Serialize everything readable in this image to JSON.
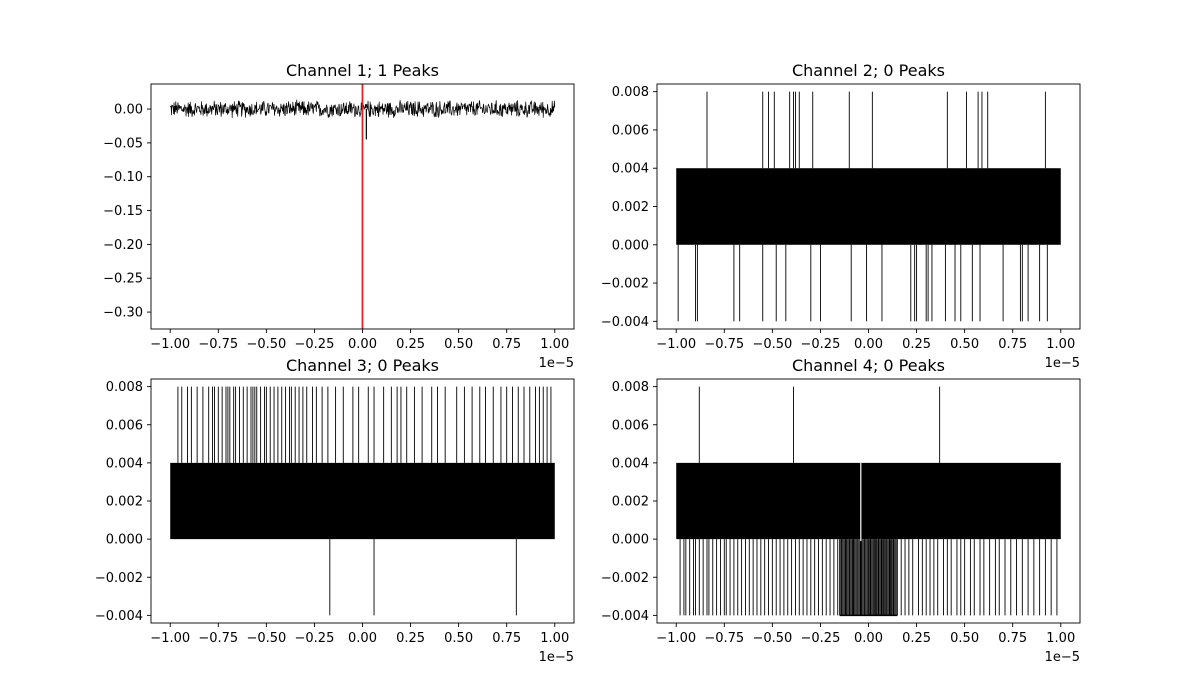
{
  "chart_data": [
    {
      "type": "line",
      "title": "Channel 1; 1 Peaks",
      "x_offset_label": "1e−5",
      "xlim": [
        -1.0,
        1.0
      ],
      "xlim_display": [
        -1.1,
        1.1
      ],
      "ylim": [
        -0.325,
        0.037
      ],
      "x_ticks": [
        -1.0,
        -0.75,
        -0.5,
        -0.25,
        0.0,
        0.25,
        0.5,
        0.75,
        1.0
      ],
      "x_tick_labels": [
        "−1.00",
        "−0.75",
        "−0.50",
        "−0.25",
        "0.00",
        "0.25",
        "0.50",
        "0.75",
        "1.00"
      ],
      "y_ticks": [
        0.0,
        -0.05,
        -0.1,
        -0.15,
        -0.2,
        -0.25,
        -0.3
      ],
      "y_tick_labels": [
        "0.00",
        "−0.05",
        "−0.10",
        "−0.15",
        "−0.20",
        "−0.25",
        "−0.30"
      ],
      "signal": {
        "kind": "noise",
        "baseline": 0.0,
        "amplitude": 0.012,
        "min_spike": -0.045,
        "min_spike_x": 0.02
      },
      "peak_markers": [
        0.0
      ],
      "peak_color": "#d62728",
      "line_color": "#000000"
    },
    {
      "type": "line",
      "title": "Channel 2; 0 Peaks",
      "x_offset_label": "1e−5",
      "xlim": [
        -1.0,
        1.0
      ],
      "xlim_display": [
        -1.1,
        1.1
      ],
      "ylim": [
        -0.0044,
        0.0084
      ],
      "x_ticks": [
        -1.0,
        -0.75,
        -0.5,
        -0.25,
        0.0,
        0.25,
        0.5,
        0.75,
        1.0
      ],
      "x_tick_labels": [
        "−1.00",
        "−0.75",
        "−0.50",
        "−0.25",
        "0.00",
        "0.25",
        "0.50",
        "0.75",
        "1.00"
      ],
      "y_ticks": [
        0.008,
        0.006,
        0.004,
        0.002,
        0.0,
        -0.002,
        -0.004
      ],
      "y_tick_labels": [
        "0.008",
        "0.006",
        "0.004",
        "0.002",
        "0.000",
        "−0.002",
        "−0.004"
      ],
      "signal": {
        "kind": "quantized",
        "low": 0.0,
        "high": 0.004,
        "up_level": 0.008,
        "down_level": -0.004
      },
      "up_spikes": [
        -0.84,
        -0.55,
        -0.52,
        -0.49,
        -0.41,
        -0.39,
        -0.38,
        -0.36,
        -0.29,
        -0.1,
        0.02,
        0.41,
        0.51,
        0.57,
        0.59,
        0.62,
        0.92
      ],
      "down_spikes": [
        -0.99,
        -0.9,
        -0.89,
        -0.7,
        -0.67,
        -0.55,
        -0.48,
        -0.43,
        -0.3,
        -0.25,
        -0.09,
        -0.01,
        0.07,
        0.22,
        0.24,
        0.25,
        0.3,
        0.31,
        0.33,
        0.4,
        0.45,
        0.48,
        0.54,
        0.58,
        0.7,
        0.79,
        0.8,
        0.83,
        0.89,
        0.93
      ],
      "line_color": "#000000"
    },
    {
      "type": "line",
      "title": "Channel 3; 0 Peaks",
      "x_offset_label": "1e−5",
      "xlim": [
        -1.0,
        1.0
      ],
      "xlim_display": [
        -1.1,
        1.1
      ],
      "ylim": [
        -0.0044,
        0.0084
      ],
      "x_ticks": [
        -1.0,
        -0.75,
        -0.5,
        -0.25,
        0.0,
        0.25,
        0.5,
        0.75,
        1.0
      ],
      "x_tick_labels": [
        "−1.00",
        "−0.75",
        "−0.50",
        "−0.25",
        "0.00",
        "0.25",
        "0.50",
        "0.75",
        "1.00"
      ],
      "y_ticks": [
        0.008,
        0.006,
        0.004,
        0.002,
        0.0,
        -0.002,
        -0.004
      ],
      "y_tick_labels": [
        "0.008",
        "0.006",
        "0.004",
        "0.002",
        "0.000",
        "−0.002",
        "−0.004"
      ],
      "signal": {
        "kind": "quantized",
        "low": 0.0,
        "high": 0.004,
        "up_level": 0.008,
        "down_level": -0.004
      },
      "up_spikes": [
        -0.96,
        -0.94,
        -0.91,
        -0.89,
        -0.86,
        -0.83,
        -0.8,
        -0.78,
        -0.77,
        -0.75,
        -0.73,
        -0.71,
        -0.7,
        -0.69,
        -0.67,
        -0.66,
        -0.64,
        -0.62,
        -0.6,
        -0.58,
        -0.57,
        -0.56,
        -0.55,
        -0.53,
        -0.51,
        -0.5,
        -0.48,
        -0.46,
        -0.44,
        -0.42,
        -0.4,
        -0.38,
        -0.37,
        -0.35,
        -0.33,
        -0.31,
        -0.29,
        -0.26,
        -0.24,
        -0.21,
        -0.18,
        -0.14,
        -0.1,
        -0.05,
        -0.02,
        0.03,
        0.06,
        0.11,
        0.15,
        0.18,
        0.2,
        0.23,
        0.27,
        0.31,
        0.36,
        0.39,
        0.43,
        0.49,
        0.53,
        0.57,
        0.61,
        0.64,
        0.68,
        0.72,
        0.75,
        0.78,
        0.81,
        0.84,
        0.87,
        0.9,
        0.92,
        0.94,
        0.96,
        0.98
      ],
      "down_spikes": [
        -0.17,
        0.06,
        0.8
      ],
      "line_color": "#000000"
    },
    {
      "type": "line",
      "title": "Channel 4; 0 Peaks",
      "x_offset_label": "1e−5",
      "xlim": [
        -1.0,
        1.0
      ],
      "xlim_display": [
        -1.1,
        1.1
      ],
      "ylim": [
        -0.0044,
        0.0084
      ],
      "x_ticks": [
        -1.0,
        -0.75,
        -0.5,
        -0.25,
        0.0,
        0.25,
        0.5,
        0.75,
        1.0
      ],
      "x_tick_labels": [
        "−1.00",
        "−0.75",
        "−0.50",
        "−0.25",
        "0.00",
        "0.25",
        "0.50",
        "0.75",
        "1.00"
      ],
      "y_ticks": [
        0.008,
        0.006,
        0.004,
        0.002,
        0.0,
        -0.002,
        -0.004
      ],
      "y_tick_labels": [
        "0.008",
        "0.006",
        "0.004",
        "0.002",
        "0.000",
        "−0.002",
        "−0.004"
      ],
      "signal": {
        "kind": "quantized",
        "low": 0.0,
        "high": 0.004,
        "up_level": 0.008,
        "down_level": -0.004
      },
      "up_spikes": [
        -0.88,
        -0.39,
        0.37
      ],
      "down_spikes": [
        -0.98,
        -0.96,
        -0.95,
        -0.93,
        -0.91,
        -0.9,
        -0.88,
        -0.86,
        -0.84,
        -0.83,
        -0.81,
        -0.79,
        -0.77,
        -0.75,
        -0.74,
        -0.72,
        -0.7,
        -0.68,
        -0.66,
        -0.64,
        -0.62,
        -0.6,
        -0.58,
        -0.56,
        -0.54,
        -0.52,
        -0.5,
        -0.48,
        -0.46,
        -0.44,
        -0.42,
        -0.4,
        -0.38,
        -0.36,
        -0.34,
        -0.32,
        -0.3,
        -0.28,
        -0.26,
        -0.24,
        -0.22,
        -0.2,
        -0.18,
        -0.16,
        -0.14,
        -0.12,
        -0.1,
        -0.08,
        -0.06,
        -0.04,
        -0.02,
        0.01,
        0.03,
        0.05,
        0.07,
        0.09,
        0.11,
        0.13,
        0.15,
        0.17,
        0.19,
        0.21,
        0.23,
        0.26,
        0.28,
        0.3,
        0.32,
        0.34,
        0.36,
        0.39,
        0.41,
        0.43,
        0.46,
        0.48,
        0.5,
        0.53,
        0.55,
        0.58,
        0.6,
        0.63,
        0.66,
        0.68,
        0.71,
        0.74,
        0.77,
        0.8,
        0.83,
        0.86,
        0.89,
        0.92,
        0.95,
        0.98
      ],
      "dense_down_region": [
        -0.15,
        0.15
      ],
      "gap_line": -0.04,
      "line_color": "#000000"
    }
  ]
}
